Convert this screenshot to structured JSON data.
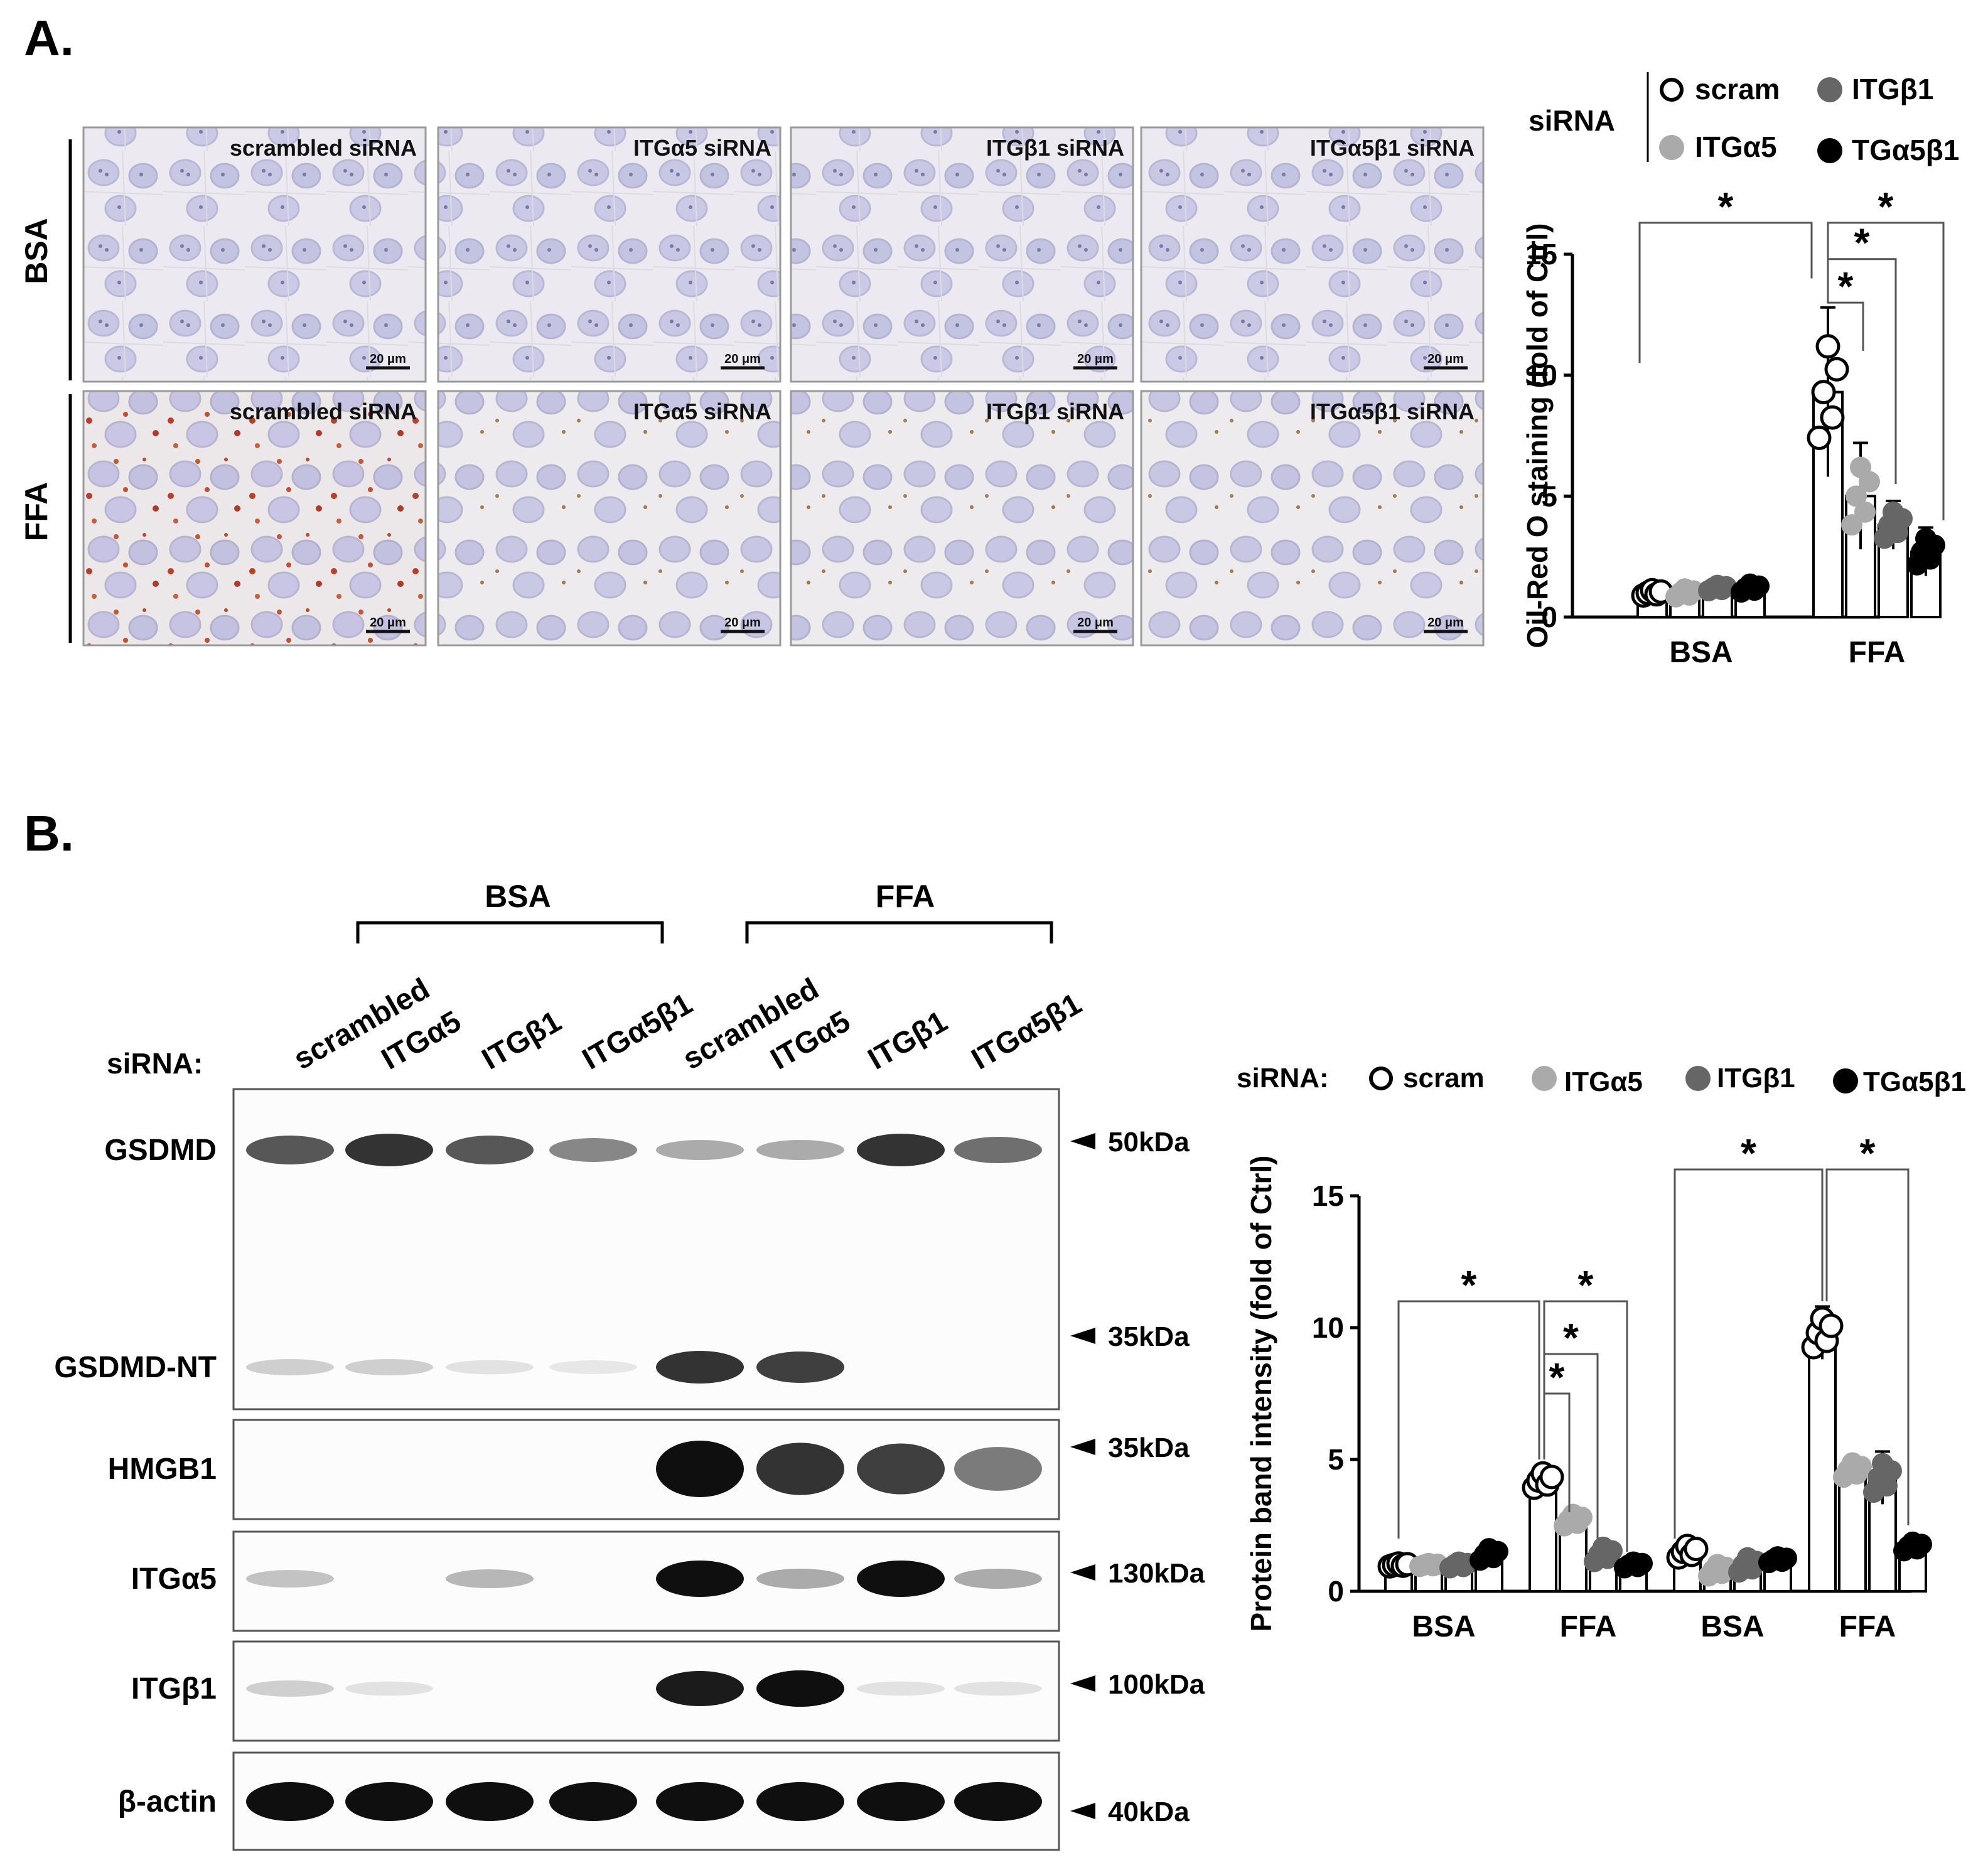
{
  "panel_a": {
    "label": "A.",
    "rows": [
      "BSA",
      "FFA"
    ],
    "micrographs": [
      [
        "scrambled siRNA",
        "ITGα5 siRNA",
        "ITGβ1 siRNA",
        "ITGα5β1 siRNA"
      ],
      [
        "scrambled siRNA",
        "ITGα5 siRNA",
        "ITGβ1 siRNA",
        "ITGα5β1 siRNA"
      ]
    ],
    "scale_bar": "20 μm",
    "legend": {
      "title": "siRNA",
      "items": [
        "scram",
        "ITGβ1",
        "ITGα5",
        "TGα5β1"
      ],
      "colors": [
        "#ffffff",
        "#666666",
        "#aaaaaa",
        "#000000"
      ]
    }
  },
  "panel_b": {
    "label": "B.",
    "groups": [
      "BSA",
      "FFA"
    ],
    "lanes": [
      "scrambled",
      "ITGα5",
      "ITGβ1",
      "ITGα5β1",
      "scrambled",
      "ITGα5",
      "ITGβ1",
      "ITGα5β1"
    ],
    "row_label": "siRNA:",
    "blots": [
      {
        "name": "GSDMD",
        "marker": "50kDa"
      },
      {
        "name": "GSDMD-NT",
        "marker": "35kDa"
      },
      {
        "name": "HMGB1",
        "marker": "35kDa"
      },
      {
        "name": "ITGα5",
        "marker": "130kDa"
      },
      {
        "name": "ITGβ1",
        "marker": "100kDa"
      },
      {
        "name": "β-actin",
        "marker": "40kDa"
      }
    ],
    "band_intensity": {
      "GSDMD": [
        0.7,
        0.85,
        0.7,
        0.5,
        0.35,
        0.35,
        0.85,
        0.6
      ],
      "GSDMD-NT": [
        0.2,
        0.2,
        0.12,
        0.1,
        0.85,
        0.8,
        0,
        0
      ],
      "HMGB1": [
        0,
        0,
        0,
        0,
        1.0,
        0.85,
        0.8,
        0.55
      ],
      "ITGα5": [
        0.25,
        0,
        0.3,
        0,
        1.0,
        0.35,
        1.0,
        0.35
      ],
      "ITGβ1": [
        0.2,
        0.12,
        0,
        0,
        0.95,
        1.0,
        0.12,
        0.12
      ],
      "β-actin": [
        1,
        1,
        1,
        1,
        1,
        1,
        1,
        1
      ]
    },
    "legend": {
      "title": "siRNA:",
      "items": [
        "scram",
        "ITGα5",
        "ITGβ1",
        "TGα5β1"
      ],
      "colors": [
        "#ffffff",
        "#aaaaaa",
        "#666666",
        "#000000"
      ]
    }
  },
  "chart_data": [
    {
      "type": "bar",
      "ylabel": "Oil-Red O staining (fold of Ctrl)",
      "categories": [
        "BSA",
        "FFA"
      ],
      "ylim": [
        0,
        15
      ],
      "yticks": [
        0,
        5,
        10,
        15
      ],
      "series": [
        {
          "name": "scram",
          "values": [
            1.0,
            9.3
          ],
          "errors": [
            0.2,
            3.5
          ]
        },
        {
          "name": "ITGα5",
          "values": [
            1.0,
            5.0
          ],
          "errors": [
            0.3,
            2.2
          ]
        },
        {
          "name": "ITGβ1",
          "values": [
            1.2,
            3.8
          ],
          "errors": [
            0.2,
            1.0
          ]
        },
        {
          "name": "TGα5β1",
          "values": [
            1.2,
            2.7
          ],
          "errors": [
            0.3,
            1.0
          ]
        }
      ],
      "significance": [
        "*",
        "*",
        "*",
        "*"
      ]
    },
    {
      "type": "bar",
      "ylabel": "Protein band intensity (fold of Ctrl)",
      "categories": [
        "BSA",
        "FFA",
        "BSA",
        "FFA"
      ],
      "groups": [
        "GSDMD-NT",
        "HMGB1"
      ],
      "ylim": [
        0,
        15
      ],
      "yticks": [
        0,
        5,
        10,
        15
      ],
      "series": [
        {
          "name": "scram",
          "values": [
            1.0,
            4.2,
            1.5,
            9.8
          ],
          "errors": [
            0.1,
            0.5,
            0.4,
            1.0
          ]
        },
        {
          "name": "ITGα5",
          "values": [
            1.0,
            2.7,
            0.8,
            4.6
          ],
          "errors": [
            0.1,
            0.4,
            0.4,
            0.5
          ]
        },
        {
          "name": "ITGβ1",
          "values": [
            1.0,
            1.4,
            1.0,
            4.3
          ],
          "errors": [
            0.2,
            0.5,
            0.5,
            1.0
          ]
        },
        {
          "name": "TGα5β1",
          "values": [
            1.4,
            1.0,
            1.2,
            1.7
          ],
          "errors": [
            0.4,
            0.2,
            0.2,
            0.3
          ]
        }
      ],
      "significance": [
        "*",
        "*",
        "*",
        "*",
        "*",
        "*"
      ]
    }
  ]
}
